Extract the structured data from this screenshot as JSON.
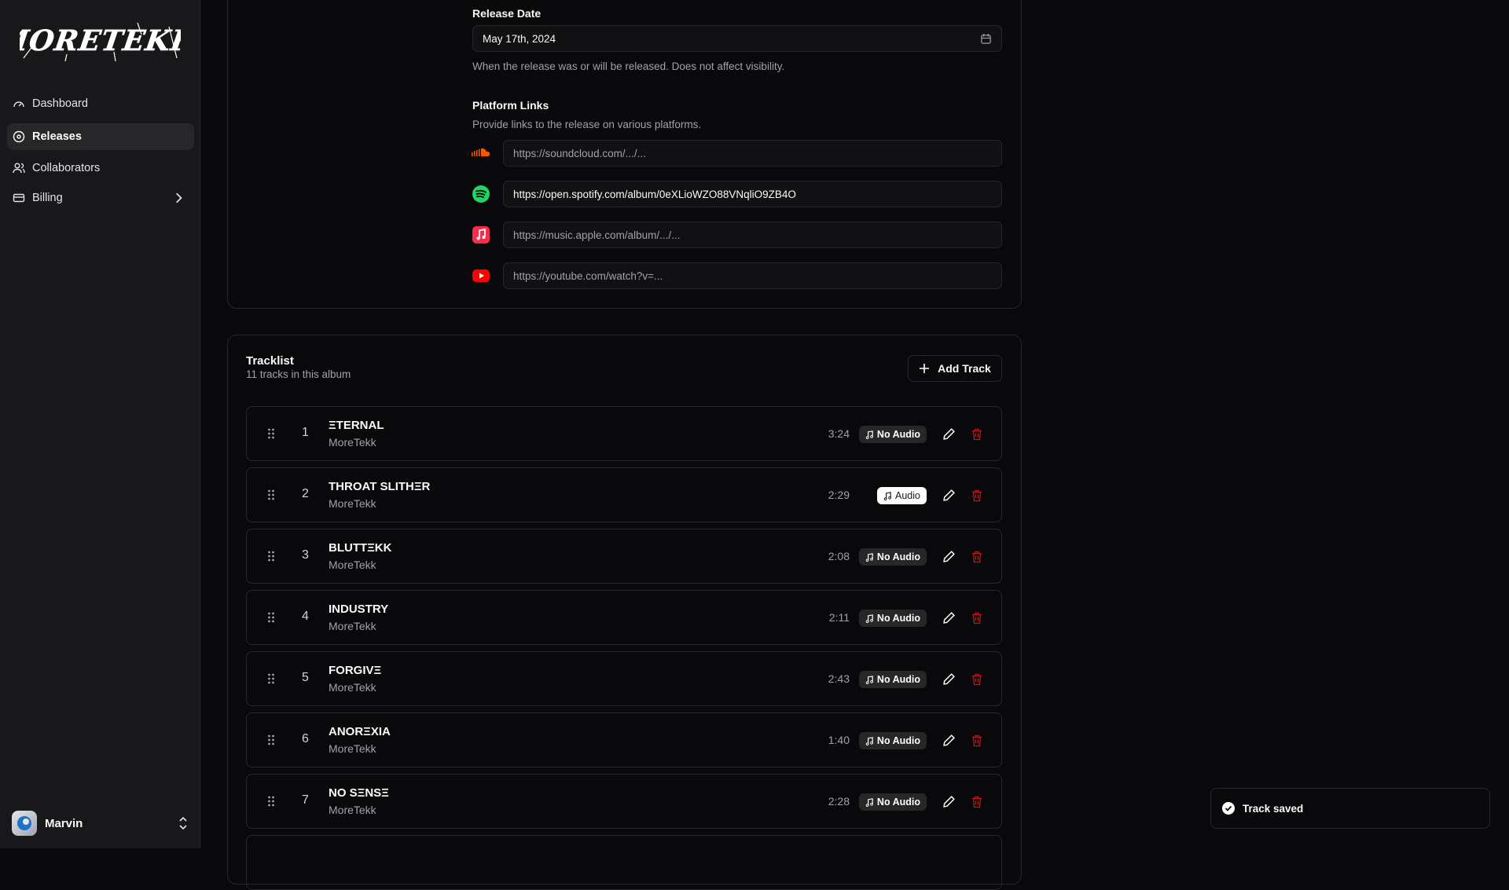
{
  "brand": {
    "logo_text": "MORETEKK"
  },
  "sidebar": {
    "items": [
      {
        "label": "Dashboard",
        "icon": "gauge-icon"
      },
      {
        "label": "Releases",
        "icon": "disc-icon",
        "active": true
      },
      {
        "label": "Collaborators",
        "icon": "users-icon"
      },
      {
        "label": "Billing",
        "icon": "credit-card-icon"
      }
    ],
    "user": {
      "name": "Marvin"
    }
  },
  "form": {
    "release_date": {
      "label": "Release Date",
      "value": "May 17th, 2024",
      "help": "When the release was or will be released. Does not affect visibility."
    },
    "platform_links": {
      "label": "Platform Links",
      "help": "Provide links to the release on various platforms.",
      "links": [
        {
          "platform": "soundcloud",
          "color": "#ff5500",
          "value": "",
          "placeholder": "https://soundcloud.com/.../..."
        },
        {
          "platform": "spotify",
          "color": "#1ed760",
          "value": "https://open.spotify.com/album/0eXLioWZO88VNqliO9ZB4O",
          "placeholder": ""
        },
        {
          "platform": "apple-music",
          "color": "#fa2d48",
          "value": "",
          "placeholder": "https://music.apple.com/album/.../..."
        },
        {
          "platform": "youtube",
          "color": "#ff0000",
          "value": "",
          "placeholder": "https://youtube.com/watch?v=..."
        }
      ]
    }
  },
  "tracklist": {
    "title": "Tracklist",
    "subtitle": "11 tracks in this album",
    "add_label": "Add Track",
    "tracks": [
      {
        "n": "1",
        "title": "ΞTERNAL",
        "artist": "MoreTekk",
        "duration": "3:24",
        "audio": "No Audio",
        "has_audio": false
      },
      {
        "n": "2",
        "title": "THROAT SLITHΞR",
        "artist": "MoreTekk",
        "duration": "2:29",
        "audio": "Audio",
        "has_audio": true
      },
      {
        "n": "3",
        "title": "BLUTTΞKK",
        "artist": "MoreTekk",
        "duration": "2:08",
        "audio": "No Audio",
        "has_audio": false
      },
      {
        "n": "4",
        "title": "INDUSTRY",
        "artist": "MoreTekk",
        "duration": "2:11",
        "audio": "No Audio",
        "has_audio": false
      },
      {
        "n": "5",
        "title": "FORGIVΞ",
        "artist": "MoreTekk",
        "duration": "2:43",
        "audio": "No Audio",
        "has_audio": false
      },
      {
        "n": "6",
        "title": "ANORΞXIA",
        "artist": "MoreTekk",
        "duration": "1:40",
        "audio": "No Audio",
        "has_audio": false
      },
      {
        "n": "7",
        "title": "NO SΞNSΞ",
        "artist": "MoreTekk",
        "duration": "2:28",
        "audio": "No Audio",
        "has_audio": false
      }
    ]
  },
  "toast": {
    "message": "Track saved"
  },
  "colors": {
    "background": "#09090b",
    "sidebar": "#18181b",
    "danger": "#dc2626"
  }
}
